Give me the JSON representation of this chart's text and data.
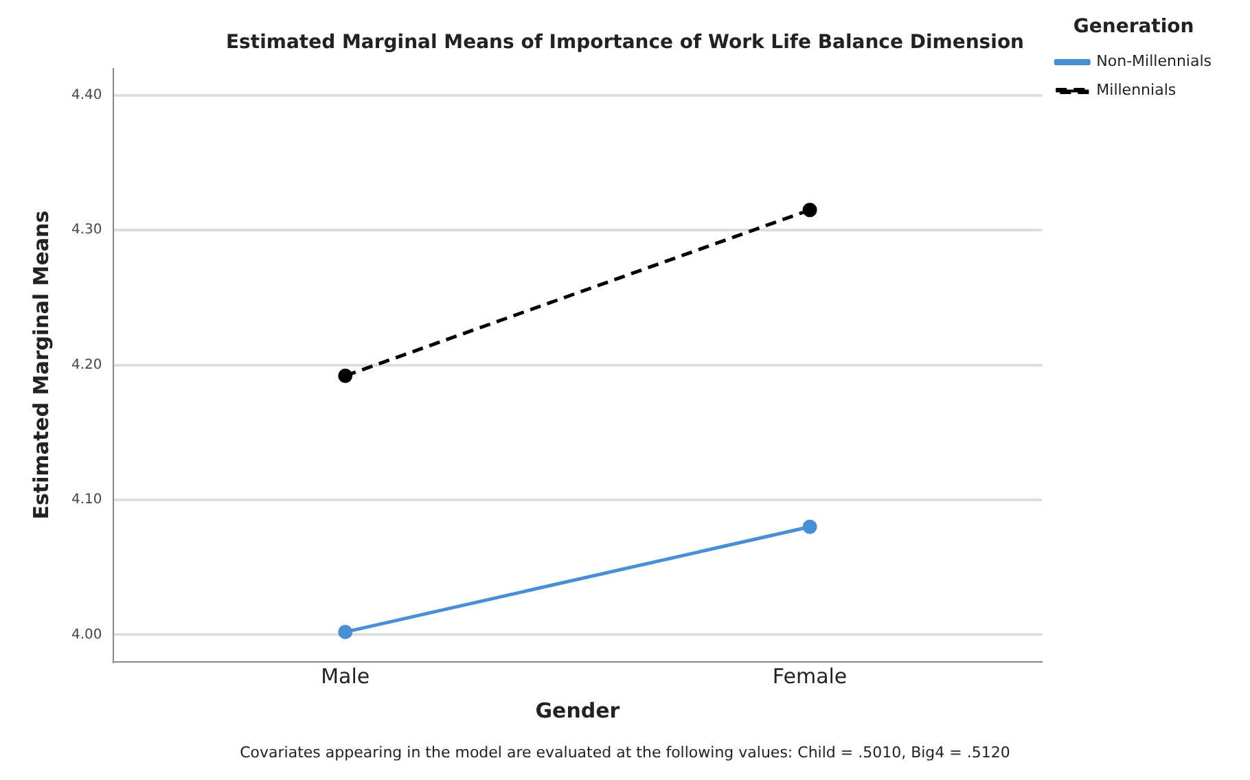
{
  "chart_data": {
    "type": "line",
    "title": "Estimated Marginal Means of Importance of Work Life Balance Dimension",
    "xlabel": "Gender",
    "ylabel": "Estimated Marginal Means",
    "legend_title": "Generation",
    "categories": [
      "Male",
      "Female"
    ],
    "series": [
      {
        "name": "Non-Millennials",
        "color": "#4a8fd6",
        "values": [
          4.002,
          4.08
        ],
        "line_style": "solid"
      },
      {
        "name": "Millennials",
        "color": "#000000",
        "values": [
          4.192,
          4.315
        ],
        "line_style": "dashed"
      }
    ],
    "ylim": [
      3.98,
      4.42
    ],
    "yticks": [
      {
        "value": 4.0,
        "label": "4.00"
      },
      {
        "value": 4.1,
        "label": "4.10"
      },
      {
        "value": 4.2,
        "label": "4.20"
      },
      {
        "value": 4.3,
        "label": "4.30"
      },
      {
        "value": 4.4,
        "label": "4.40"
      }
    ],
    "grid": "y",
    "legend": "top right",
    "marker": "circle",
    "annotations": [
      "Covariates appearing in the model are evaluated at the following values: Child = .5010, Big4 = .5120"
    ]
  }
}
